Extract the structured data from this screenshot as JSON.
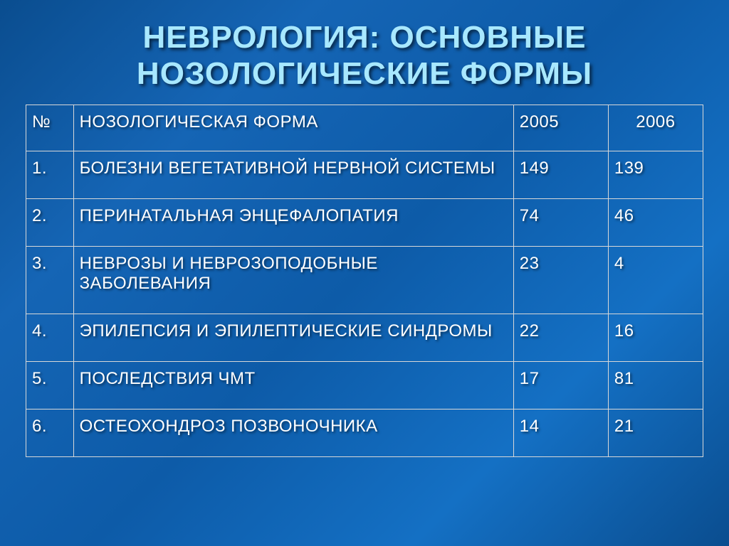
{
  "title": {
    "text": "НЕВРОЛОГИЯ: ОСНОВНЫЕ НОЗОЛОГИЧЕСКИЕ ФОРМЫ",
    "fontsize": 44,
    "color": "#a8e8ff"
  },
  "table": {
    "type": "table",
    "header_fontsize": 24,
    "cell_fontsize": 24,
    "border_color": "#d8d8d8",
    "text_color": "#ffffff",
    "columns": [
      {
        "label": "№",
        "width_pct": 7,
        "align": "left"
      },
      {
        "label": "НОЗОЛОГИЧЕСКАЯ ФОРМА",
        "width_pct": 65,
        "align": "left"
      },
      {
        "label": "2005",
        "width_pct": 14,
        "align": "left"
      },
      {
        "label": "2006",
        "width_pct": 14,
        "align": "center"
      }
    ],
    "rows": [
      {
        "num": "1.",
        "form": "БОЛЕЗНИ ВЕГЕТАТИВНОЙ НЕРВНОЙ СИСТЕМЫ",
        "y2005": "149",
        "y2006": "139"
      },
      {
        "num": "2.",
        "form": "ПЕРИНАТАЛЬНАЯ ЭНЦЕФАЛОПАТИЯ",
        "y2005": "74",
        "y2006": "46"
      },
      {
        "num": "3.",
        "form": "НЕВРОЗЫ И НЕВРОЗОПОДОБНЫЕ ЗАБОЛЕВАНИЯ",
        "y2005": "23",
        "y2006": "4"
      },
      {
        "num": "4.",
        "form": "ЭПИЛЕПСИЯ И ЭПИЛЕПТИЧЕСКИЕ СИНДРОМЫ",
        "y2005": "22",
        "y2006": "16"
      },
      {
        "num": "5.",
        "form": "ПОСЛЕДСТВИЯ ЧМТ",
        "y2005": "17",
        "y2006": "81"
      },
      {
        "num": "6.",
        "form": "ОСТЕОХОНДРОЗ ПОЗВОНОЧНИКА",
        "y2005": "14",
        "y2006": "21"
      }
    ]
  },
  "background": {
    "gradient_colors": [
      "#0a4d8f",
      "#1565b5",
      "#0d5ba8",
      "#1470c4",
      "#0a4d8f"
    ]
  }
}
